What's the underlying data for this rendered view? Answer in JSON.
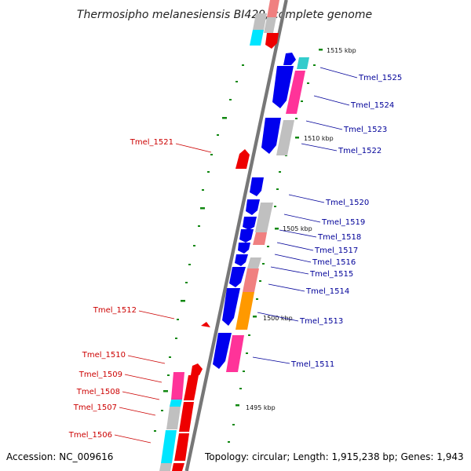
{
  "title": "Thermosipho melanesiensis BI429, complete genome",
  "footer": {
    "accession": "Accession: NC_009616",
    "topology": "Topology: circular; Length: 1,915,238 bp; Genes: 1,943"
  },
  "scale_labels": [
    "1515 kbp",
    "1510 kbp",
    "1505 kbp",
    "1500 kbp",
    "1495 kbp"
  ],
  "left_labels": [
    "Tmel_1521",
    "Tmel_1512",
    "Tmel_1510",
    "Tmel_1509",
    "Tmel_1508",
    "Tmel_1507",
    "Tmel_1506"
  ],
  "right_labels": [
    "Tmel_1525",
    "Tmel_1524",
    "Tmel_1523",
    "Tmel_1522",
    "Tmel_1520",
    "Tmel_1519",
    "Tmel_1518",
    "Tmel_1517",
    "Tmel_1516",
    "Tmel_1515",
    "Tmel_1514",
    "Tmel_1513",
    "Tmel_1511"
  ],
  "colors": {
    "forward_strand": "#0000ee",
    "reverse_strand": "#ee0000",
    "pink": "#ff3399",
    "light_pink": "#f08080",
    "gray": "#c0c0c0",
    "cyan": "#00e5ff",
    "orange": "#ff9900",
    "teal": "#33cccc",
    "tick_green": "#118811",
    "backbone": "#777777"
  }
}
